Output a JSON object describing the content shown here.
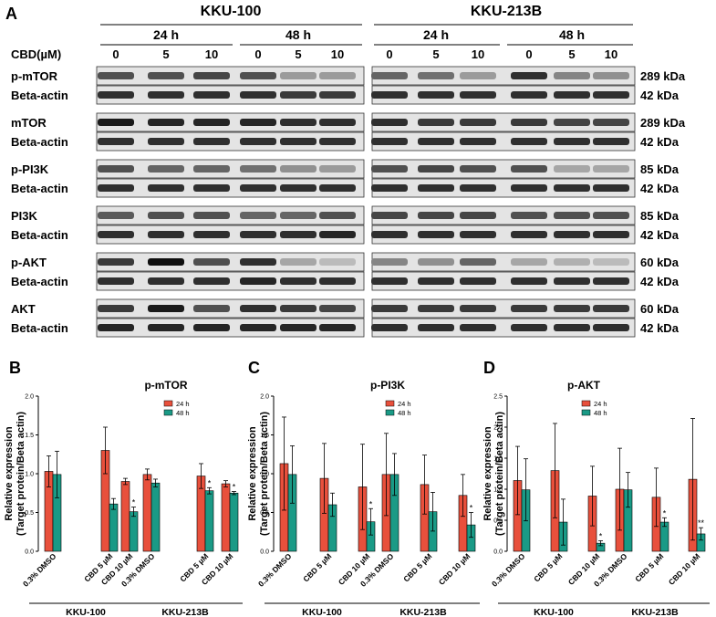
{
  "colors": {
    "h24": "#e8503c",
    "h48": "#1a9a86",
    "blot_bg": "#e4e4e4",
    "band": "#111111"
  },
  "blot": {
    "panel_label": "A",
    "groups": [
      "KKU-100",
      "KKU-213B"
    ],
    "times": [
      "24 h",
      "48 h",
      "24 h",
      "48 h"
    ],
    "dose_header": "CBD(µM)",
    "doses": [
      "0",
      "5",
      "10",
      "0",
      "5",
      "10",
      "0",
      "5",
      "10",
      "0",
      "5",
      "10"
    ],
    "rows": [
      {
        "label": "p-mTOR",
        "size": "289 kDa",
        "intensity": [
          0.7,
          0.7,
          0.75,
          0.7,
          0.35,
          0.35,
          0.6,
          0.55,
          0.35,
          0.85,
          0.45,
          0.4
        ]
      },
      {
        "label": "Beta-actin",
        "size": "42 kDa",
        "intensity": [
          0.85,
          0.85,
          0.85,
          0.85,
          0.8,
          0.8,
          0.85,
          0.85,
          0.85,
          0.85,
          0.85,
          0.85
        ]
      },
      {
        "label": "mTOR",
        "size": "289 kDa",
        "intensity": [
          0.95,
          0.9,
          0.9,
          0.9,
          0.85,
          0.85,
          0.85,
          0.8,
          0.8,
          0.8,
          0.75,
          0.75
        ]
      },
      {
        "label": "Beta-actin",
        "size": "42 kDa",
        "intensity": [
          0.85,
          0.85,
          0.85,
          0.85,
          0.85,
          0.85,
          0.85,
          0.85,
          0.85,
          0.85,
          0.85,
          0.85
        ]
      },
      {
        "label": "p-PI3K",
        "size": "85 kDa",
        "intensity": [
          0.7,
          0.6,
          0.6,
          0.55,
          0.4,
          0.35,
          0.7,
          0.75,
          0.7,
          0.7,
          0.3,
          0.3
        ]
      },
      {
        "label": "Beta-actin",
        "size": "42 kDa",
        "intensity": [
          0.85,
          0.85,
          0.85,
          0.85,
          0.85,
          0.85,
          0.85,
          0.85,
          0.85,
          0.85,
          0.85,
          0.85
        ]
      },
      {
        "label": "PI3K",
        "size": "85 kDa",
        "intensity": [
          0.65,
          0.7,
          0.7,
          0.6,
          0.6,
          0.7,
          0.75,
          0.75,
          0.75,
          0.7,
          0.7,
          0.7
        ]
      },
      {
        "label": "Beta-actin",
        "size": "42 kDa",
        "intensity": [
          0.85,
          0.85,
          0.85,
          0.85,
          0.85,
          0.9,
          0.85,
          0.85,
          0.85,
          0.85,
          0.85,
          0.85
        ]
      },
      {
        "label": "p-AKT",
        "size": "60 kDa",
        "intensity": [
          0.8,
          1.0,
          0.7,
          0.85,
          0.3,
          0.2,
          0.45,
          0.4,
          0.6,
          0.3,
          0.25,
          0.2
        ]
      },
      {
        "label": "Beta-actin",
        "size": "42 kDa",
        "intensity": [
          0.85,
          0.85,
          0.85,
          0.9,
          0.85,
          0.85,
          0.85,
          0.85,
          0.85,
          0.85,
          0.85,
          0.85
        ]
      },
      {
        "label": "AKT",
        "size": "60 kDa",
        "intensity": [
          0.8,
          0.95,
          0.7,
          0.85,
          0.8,
          0.75,
          0.8,
          0.8,
          0.8,
          0.8,
          0.8,
          0.8
        ]
      },
      {
        "label": "Beta-actin",
        "size": "42 kDa",
        "intensity": [
          0.9,
          0.9,
          0.9,
          0.9,
          0.9,
          0.9,
          0.85,
          0.85,
          0.85,
          0.85,
          0.85,
          0.85
        ]
      }
    ]
  },
  "chart_data": [
    {
      "type": "bar",
      "panel": "B",
      "title": "p-mTOR",
      "ylabel_line1": "Relative expression",
      "ylabel_line2": "(Target protein/Beta actin)",
      "ylim": [
        0,
        2.0
      ],
      "yticks": [
        "0.0",
        "0.5",
        "1.0",
        "1.5",
        "2.0"
      ],
      "categories": [
        "0.3% DMSO",
        "CBD 5 µM",
        "CBD 10 µM",
        "0.3% DMSO",
        "CBD 5 µM",
        "CBD 10 µM"
      ],
      "groups": [
        "KKU-100",
        "KKU-213B"
      ],
      "legend": [
        "24 h",
        "48 h"
      ],
      "series": [
        {
          "name": "24 h",
          "values": [
            1.03,
            1.3,
            0.9,
            0.99,
            0.97,
            0.87
          ],
          "errors": [
            0.2,
            0.3,
            0.04,
            0.07,
            0.16,
            0.04
          ]
        },
        {
          "name": "48 h",
          "values": [
            0.99,
            0.61,
            0.51,
            0.88,
            0.78,
            0.75
          ],
          "errors": [
            0.3,
            0.07,
            0.06,
            0.05,
            0.04,
            0.02
          ]
        }
      ],
      "significance": [
        "",
        "",
        "*",
        "",
        "*",
        "*"
      ]
    },
    {
      "type": "bar",
      "panel": "C",
      "title": "p-PI3K",
      "ylabel_line1": "Relative expression",
      "ylabel_line2": "(Target protein/Beta actin)",
      "ylim": [
        0,
        2.0
      ],
      "yticks": [
        "0.0",
        "0.5",
        "1.0",
        "1.5",
        "2.0"
      ],
      "categories": [
        "0.3% DMSO",
        "CBD 5 µM",
        "CBD 10 µM",
        "0.3% DMSO",
        "CBD 5 µM",
        "CBD 10 µM"
      ],
      "groups": [
        "KKU-100",
        "KKU-213B"
      ],
      "legend": [
        "24 h",
        "48 h"
      ],
      "series": [
        {
          "name": "24 h",
          "values": [
            1.13,
            0.94,
            0.83,
            0.99,
            0.86,
            0.72
          ],
          "errors": [
            0.6,
            0.45,
            0.55,
            0.53,
            0.38,
            0.27
          ]
        },
        {
          "name": "48 h",
          "values": [
            0.99,
            0.6,
            0.38,
            0.99,
            0.51,
            0.34
          ],
          "errors": [
            0.37,
            0.15,
            0.17,
            0.27,
            0.25,
            0.16
          ]
        }
      ],
      "significance": [
        "",
        "",
        "*",
        "",
        "",
        "*"
      ]
    },
    {
      "type": "bar",
      "panel": "D",
      "title": "p-AKT",
      "ylabel_line1": "Relative expression",
      "ylabel_line2": "(Target protein/Beta actin)",
      "ylim": [
        0,
        2.5
      ],
      "yticks": [
        "0.0",
        "0.5",
        "1.0",
        "1.5",
        "2.0",
        "2.5"
      ],
      "categories": [
        "0.3% DMSO",
        "CBD 5 µM",
        "CBD 10 µM",
        "0.3% DMSO",
        "CBD 5 µM",
        "CBD 10 µM"
      ],
      "groups": [
        "KKU-100",
        "KKU-213B"
      ],
      "legend": [
        "24 h",
        "48 h"
      ],
      "series": [
        {
          "name": "24 h",
          "values": [
            1.14,
            1.3,
            0.89,
            1.0,
            0.87,
            1.16
          ],
          "errors": [
            0.55,
            0.76,
            0.48,
            0.66,
            0.47,
            0.98
          ]
        },
        {
          "name": "48 h",
          "values": [
            0.99,
            0.47,
            0.13,
            0.99,
            0.47,
            0.28
          ],
          "errors": [
            0.5,
            0.37,
            0.04,
            0.28,
            0.07,
            0.1
          ]
        }
      ],
      "significance": [
        "",
        "",
        "*",
        "",
        "*",
        "**"
      ]
    }
  ]
}
